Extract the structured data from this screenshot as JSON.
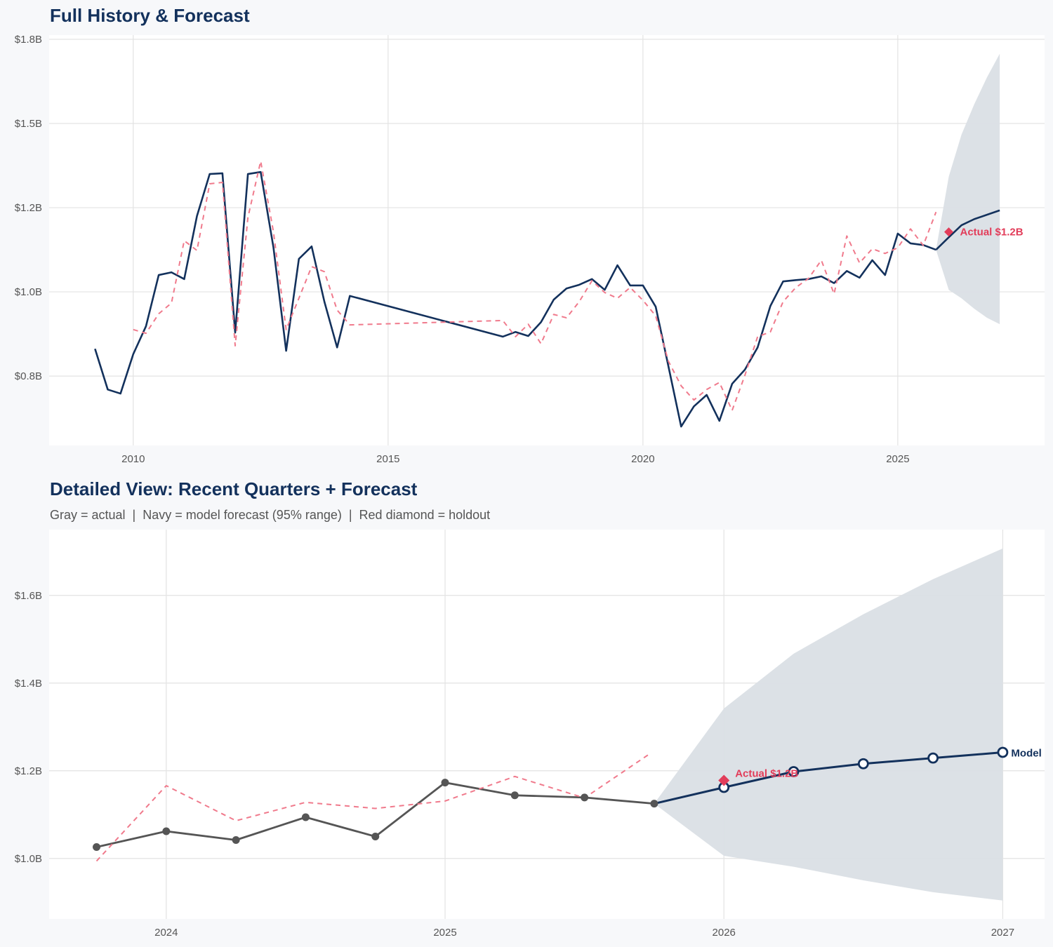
{
  "colors": {
    "navy": "#13315c",
    "red_dashed": "#f07a8c",
    "diamond": "#e23d5a",
    "gray_actual": "#555555",
    "band": "#dadfe5",
    "grid": "#e3e3e3",
    "panel": "#ffffff",
    "background": "#f7f8fa"
  },
  "chart_data": [
    {
      "type": "line",
      "title": "Full History & Forecast",
      "xlim": [
        2008.35,
        2027.88
      ],
      "ylim": [
        0.544,
        1.7625
      ],
      "grid": true,
      "x_ticks": [
        2010,
        2015,
        2020,
        2025
      ],
      "x_tick_labels": [
        "2010",
        "2015",
        "2020",
        "2025"
      ],
      "y_ticks": [
        0.75,
        1.0,
        1.25,
        1.5,
        1.75
      ],
      "y_tick_labels": [
        "$0.8B",
        "$1.0B",
        "$1.2B",
        "$1.5B",
        "$1.8B"
      ],
      "series": [
        {
          "role": "actual",
          "style": "solid navy",
          "x": [
            2009.25,
            2009.5,
            2009.75,
            2010.0,
            2010.25,
            2010.5,
            2010.75,
            2011.0,
            2011.25,
            2011.5,
            2011.75,
            2012.0,
            2012.25,
            2012.5,
            2012.75,
            2013.0,
            2013.25,
            2013.5,
            2013.75,
            2014.0,
            2014.25,
            2017.25,
            2017.5,
            2017.75,
            2018.0,
            2018.25,
            2018.5,
            2018.75,
            2019.0,
            2019.25,
            2019.5,
            2019.75,
            2020.0,
            2020.25,
            2020.5,
            2020.75,
            2021.0,
            2021.25,
            2021.5,
            2021.75,
            2022.0,
            2022.25,
            2022.5,
            2022.75,
            2023.0,
            2023.25,
            2023.5,
            2023.75,
            2024.0,
            2024.25,
            2024.5,
            2024.75,
            2025.0,
            2025.25,
            2025.5,
            2025.75
          ],
          "y": [
            0.831,
            0.71,
            0.698,
            0.815,
            0.898,
            1.05,
            1.058,
            1.038,
            1.225,
            1.35,
            1.352,
            0.879,
            1.35,
            1.356,
            1.133,
            0.825,
            1.098,
            1.135,
            0.971,
            0.835,
            0.988,
            0.867,
            0.881,
            0.869,
            0.91,
            0.977,
            1.01,
            1.021,
            1.038,
            1.006,
            1.079,
            1.019,
            1.019,
            0.956,
            0.779,
            0.6,
            0.66,
            0.694,
            0.617,
            0.727,
            0.769,
            0.835,
            0.958,
            1.031,
            1.035,
            1.038,
            1.046,
            1.026,
            1.062,
            1.042,
            1.094,
            1.05,
            1.173,
            1.144,
            1.139,
            1.125
          ]
        },
        {
          "role": "forecast",
          "style": "solid navy",
          "x": [
            2025.75,
            2026.0,
            2026.25,
            2026.5,
            2026.75,
            2027.0
          ],
          "y": [
            1.125,
            1.162,
            1.198,
            1.216,
            1.229,
            1.242
          ]
        },
        {
          "role": "fitted",
          "style": "dashed red",
          "x": [
            2010.0,
            2010.25,
            2010.5,
            2010.75,
            2011.0,
            2011.25,
            2011.5,
            2011.75,
            2012.0,
            2012.25,
            2012.5,
            2012.75,
            2013.0,
            2013.25,
            2013.5,
            2013.75,
            2014.0,
            2014.25,
            2017.25,
            2017.5,
            2017.75,
            2018.0,
            2018.25,
            2018.5,
            2018.75,
            2019.0,
            2019.25,
            2019.5,
            2019.75,
            2020.0,
            2020.25,
            2020.5,
            2020.75,
            2021.0,
            2021.25,
            2021.5,
            2021.75,
            2022.0,
            2022.25,
            2022.5,
            2022.75,
            2023.0,
            2023.25,
            2023.5,
            2023.75,
            2024.0,
            2024.25,
            2024.5,
            2024.75,
            2025.0,
            2025.25,
            2025.5,
            2025.75
          ],
          "y": [
            0.888,
            0.877,
            0.935,
            0.967,
            1.152,
            1.123,
            1.321,
            1.325,
            0.84,
            1.221,
            1.388,
            1.179,
            0.888,
            0.981,
            1.075,
            1.06,
            0.946,
            0.902,
            0.915,
            0.867,
            0.904,
            0.846,
            0.933,
            0.923,
            0.971,
            1.033,
            0.998,
            0.981,
            1.013,
            0.975,
            0.929,
            0.794,
            0.721,
            0.679,
            0.71,
            0.731,
            0.648,
            0.752,
            0.867,
            0.881,
            0.971,
            1.013,
            1.04,
            1.094,
            0.994,
            1.166,
            1.086,
            1.128,
            1.114,
            1.131,
            1.187,
            1.138,
            1.237
          ]
        }
      ],
      "band": {
        "label": "95% range",
        "x": [
          2025.75,
          2026.0,
          2026.25,
          2026.5,
          2026.75,
          2027.0
        ],
        "upper": [
          1.125,
          1.342,
          1.467,
          1.557,
          1.637,
          1.707
        ],
        "lower": [
          1.125,
          1.006,
          0.981,
          0.95,
          0.923,
          0.904
        ]
      },
      "holdout": {
        "x": 2026.0,
        "y": 1.178,
        "label": "Actual $1.2B"
      }
    },
    {
      "type": "line",
      "title": "Detailed View: Recent Quarters + Forecast",
      "subtitle": "Gray = actual  |  Navy = model forecast (95% range)  |  Red diamond = holdout",
      "xlim": [
        2023.58,
        2027.15
      ],
      "ylim": [
        0.862,
        1.75
      ],
      "grid": true,
      "x_ticks": [
        2024,
        2025,
        2026,
        2027
      ],
      "x_tick_labels": [
        "2024",
        "2025",
        "2026",
        "2027"
      ],
      "y_ticks": [
        1.0,
        1.2,
        1.4,
        1.6
      ],
      "y_tick_labels": [
        "$1.0B",
        "$1.2B",
        "$1.4B",
        "$1.6B"
      ],
      "series": [
        {
          "role": "actual",
          "style": "solid gray with markers",
          "x": [
            2023.75,
            2024.0,
            2024.25,
            2024.5,
            2024.75,
            2025.0,
            2025.25,
            2025.5,
            2025.75
          ],
          "y": [
            1.026,
            1.062,
            1.042,
            1.094,
            1.05,
            1.173,
            1.144,
            1.139,
            1.125
          ]
        },
        {
          "role": "forecast",
          "style": "solid navy with hollow markers",
          "name": "Model",
          "x": [
            2025.75,
            2026.0,
            2026.25,
            2026.5,
            2026.75,
            2027.0
          ],
          "y": [
            1.125,
            1.162,
            1.198,
            1.216,
            1.229,
            1.242
          ]
        },
        {
          "role": "fitted",
          "style": "dashed red",
          "x": [
            2023.75,
            2024.0,
            2024.25,
            2024.5,
            2024.75,
            2025.0,
            2025.25,
            2025.5,
            2025.73
          ],
          "y": [
            0.994,
            1.166,
            1.086,
            1.128,
            1.114,
            1.131,
            1.187,
            1.138,
            1.237
          ]
        }
      ],
      "band": {
        "label": "95% range",
        "x": [
          2025.75,
          2026.0,
          2026.25,
          2026.5,
          2026.75,
          2027.0
        ],
        "upper": [
          1.125,
          1.342,
          1.467,
          1.557,
          1.637,
          1.707
        ],
        "lower": [
          1.125,
          1.006,
          0.981,
          0.95,
          0.923,
          0.904
        ]
      },
      "holdout": {
        "x": 2026.0,
        "y": 1.178,
        "label": "Actual $1.2B"
      }
    }
  ]
}
